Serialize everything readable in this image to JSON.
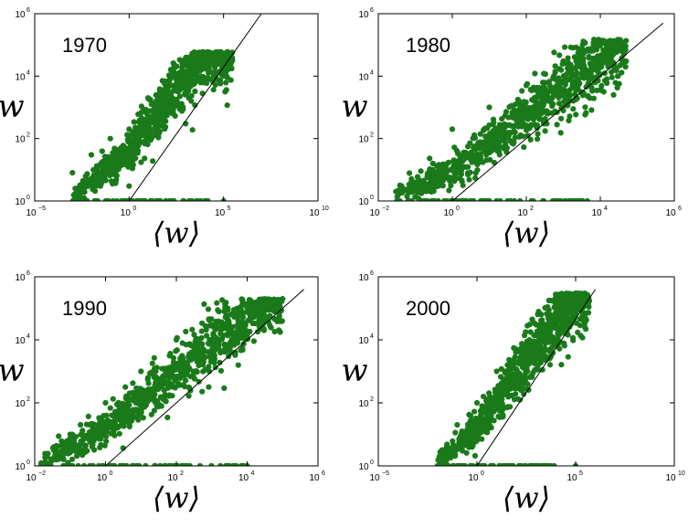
{
  "chart_data": [
    {
      "type": "scatter",
      "panel_label": "1970",
      "xlabel": "⟨w⟩",
      "ylabel": "w",
      "x_scale": "log",
      "y_scale": "log",
      "xlim": [
        1e-05,
        10000000000.0
      ],
      "ylim": [
        1,
        1000000.0
      ],
      "x_ticks": [
        {
          "base": "10",
          "exp": "−5",
          "value": 1e-05
        },
        {
          "base": "10",
          "exp": "0",
          "value": 1
        },
        {
          "base": "10",
          "exp": "5",
          "value": 100000.0
        },
        {
          "base": "10",
          "exp": "10",
          "value": 10000000000.0
        }
      ],
      "y_ticks": [
        {
          "base": "10",
          "exp": "0",
          "value": 1
        },
        {
          "base": "10",
          "exp": "2",
          "value": 100
        },
        {
          "base": "10",
          "exp": "4",
          "value": 10000
        },
        {
          "base": "10",
          "exp": "6",
          "value": 1000000
        }
      ],
      "marker_color": "#1a7a1a",
      "cloud": {
        "x_range": [
          0.001,
          300000
        ],
        "y_floor": 1,
        "y_max": 60000
      },
      "reference_line": {
        "x": [
          1,
          10000000
        ],
        "y": [
          1,
          1000000
        ]
      },
      "series": [
        {
          "points": [
            [
              0.001,
              8
            ],
            [
              0.01,
              30
            ],
            [
              0.03,
              3
            ],
            [
              0.1,
              100
            ],
            [
              0.3,
              20
            ],
            [
              1,
              200
            ],
            [
              1,
              3
            ],
            [
              3,
              600
            ],
            [
              10,
              2000
            ],
            [
              30,
              300
            ],
            [
              100,
              5000
            ],
            [
              300,
              20000
            ],
            [
              1000,
              300
            ],
            [
              3000,
              30000
            ],
            [
              10000,
              50000
            ],
            [
              30000,
              10000
            ],
            [
              100000,
              10000
            ],
            [
              1,
              1
            ],
            [
              100000,
              1
            ]
          ]
        }
      ]
    },
    {
      "type": "scatter",
      "panel_label": "1980",
      "xlabel": "⟨w⟩",
      "ylabel": "w",
      "x_scale": "log",
      "y_scale": "log",
      "xlim": [
        0.01,
        1000000.0
      ],
      "ylim": [
        1,
        1000000.0
      ],
      "x_ticks": [
        {
          "base": "10",
          "exp": "−2",
          "value": 0.01
        },
        {
          "base": "10",
          "exp": "0",
          "value": 1
        },
        {
          "base": "10",
          "exp": "2",
          "value": 100
        },
        {
          "base": "10",
          "exp": "4",
          "value": 10000
        },
        {
          "base": "10",
          "exp": "6",
          "value": 1000000
        }
      ],
      "y_ticks": [
        {
          "base": "10",
          "exp": "0",
          "value": 1
        },
        {
          "base": "10",
          "exp": "2",
          "value": 100
        },
        {
          "base": "10",
          "exp": "4",
          "value": 10000
        },
        {
          "base": "10",
          "exp": "6",
          "value": 1000000
        }
      ],
      "marker_color": "#1a7a1a",
      "cloud": {
        "x_range": [
          0.03,
          50000
        ],
        "y_floor": 1,
        "y_max": 150000
      },
      "reference_line": {
        "x": [
          1,
          500000
        ],
        "y": [
          1,
          500000
        ]
      },
      "series": [
        {
          "points": [
            [
              0.03,
              2
            ],
            [
              0.1,
              3
            ],
            [
              0.3,
              10
            ],
            [
              1,
              200
            ],
            [
              3,
              30
            ],
            [
              10,
              1000
            ],
            [
              30,
              50
            ],
            [
              100,
              5000
            ],
            [
              300,
              300
            ],
            [
              1000,
              30000
            ],
            [
              3000,
              3000
            ],
            [
              10000,
              100000
            ],
            [
              30000,
              10000
            ],
            [
              50000,
              30000
            ],
            [
              0.2,
              1
            ],
            [
              3000,
              1
            ]
          ]
        }
      ]
    },
    {
      "type": "scatter",
      "panel_label": "1990",
      "xlabel": "⟨w⟩",
      "ylabel": "w",
      "x_scale": "log",
      "y_scale": "log",
      "xlim": [
        0.01,
        1000000.0
      ],
      "ylim": [
        1,
        1000000.0
      ],
      "x_ticks": [
        {
          "base": "10",
          "exp": "−2",
          "value": 0.01
        },
        {
          "base": "10",
          "exp": "0",
          "value": 1
        },
        {
          "base": "10",
          "exp": "2",
          "value": 100
        },
        {
          "base": "10",
          "exp": "4",
          "value": 10000
        },
        {
          "base": "10",
          "exp": "6",
          "value": 1000000
        }
      ],
      "y_ticks": [
        {
          "base": "10",
          "exp": "0",
          "value": 1
        },
        {
          "base": "10",
          "exp": "2",
          "value": 100
        },
        {
          "base": "10",
          "exp": "4",
          "value": 10000
        },
        {
          "base": "10",
          "exp": "6",
          "value": 1000000
        }
      ],
      "marker_color": "#1a7a1a",
      "cloud": {
        "x_range": [
          0.015,
          100000
        ],
        "y_floor": 1,
        "y_max": 200000
      },
      "reference_line": {
        "x": [
          1,
          400000
        ],
        "y": [
          1,
          400000
        ]
      },
      "series": [
        {
          "points": [
            [
              0.015,
              1
            ],
            [
              0.02,
              2
            ],
            [
              0.1,
              10
            ],
            [
              0.3,
              3
            ],
            [
              1,
              100
            ],
            [
              3,
              20
            ],
            [
              10,
              1000
            ],
            [
              30,
              100
            ],
            [
              100,
              10000
            ],
            [
              300,
              1000
            ],
            [
              1000,
              30000
            ],
            [
              3000,
              3000
            ],
            [
              10000,
              100000
            ],
            [
              30000,
              20000
            ],
            [
              100000,
              200000
            ],
            [
              10000,
              1
            ]
          ]
        }
      ]
    },
    {
      "type": "scatter",
      "panel_label": "2000",
      "xlabel": "⟨w⟩",
      "ylabel": "w",
      "x_scale": "log",
      "y_scale": "log",
      "xlim": [
        1e-05,
        10000000000.0
      ],
      "ylim": [
        1,
        1000000.0
      ],
      "x_ticks": [
        {
          "base": "10",
          "exp": "−5",
          "value": 1e-05
        },
        {
          "base": "10",
          "exp": "0",
          "value": 1
        },
        {
          "base": "10",
          "exp": "5",
          "value": 100000.0
        },
        {
          "base": "10",
          "exp": "10",
          "value": 10000000000.0
        }
      ],
      "y_ticks": [
        {
          "base": "10",
          "exp": "0",
          "value": 1
        },
        {
          "base": "10",
          "exp": "2",
          "value": 100
        },
        {
          "base": "10",
          "exp": "4",
          "value": 10000
        },
        {
          "base": "10",
          "exp": "6",
          "value": 1000000
        }
      ],
      "marker_color": "#1a7a1a",
      "cloud": {
        "x_range": [
          0.01,
          500000
        ],
        "y_floor": 1,
        "y_max": 300000
      },
      "reference_line": {
        "x": [
          1,
          1000000
        ],
        "y": [
          1,
          400000
        ]
      },
      "series": [
        {
          "points": [
            [
              0.01,
              1
            ],
            [
              0.03,
              3
            ],
            [
              0.1,
              20
            ],
            [
              0.3,
              5
            ],
            [
              1,
              100
            ],
            [
              3,
              30
            ],
            [
              10,
              1000
            ],
            [
              30,
              200
            ],
            [
              100,
              5000
            ],
            [
              300,
              1000
            ],
            [
              1000,
              30000
            ],
            [
              3000,
              3000
            ],
            [
              10000,
              100000
            ],
            [
              30000,
              30000
            ],
            [
              100000,
              300000
            ],
            [
              100000,
              1
            ]
          ]
        }
      ]
    }
  ]
}
